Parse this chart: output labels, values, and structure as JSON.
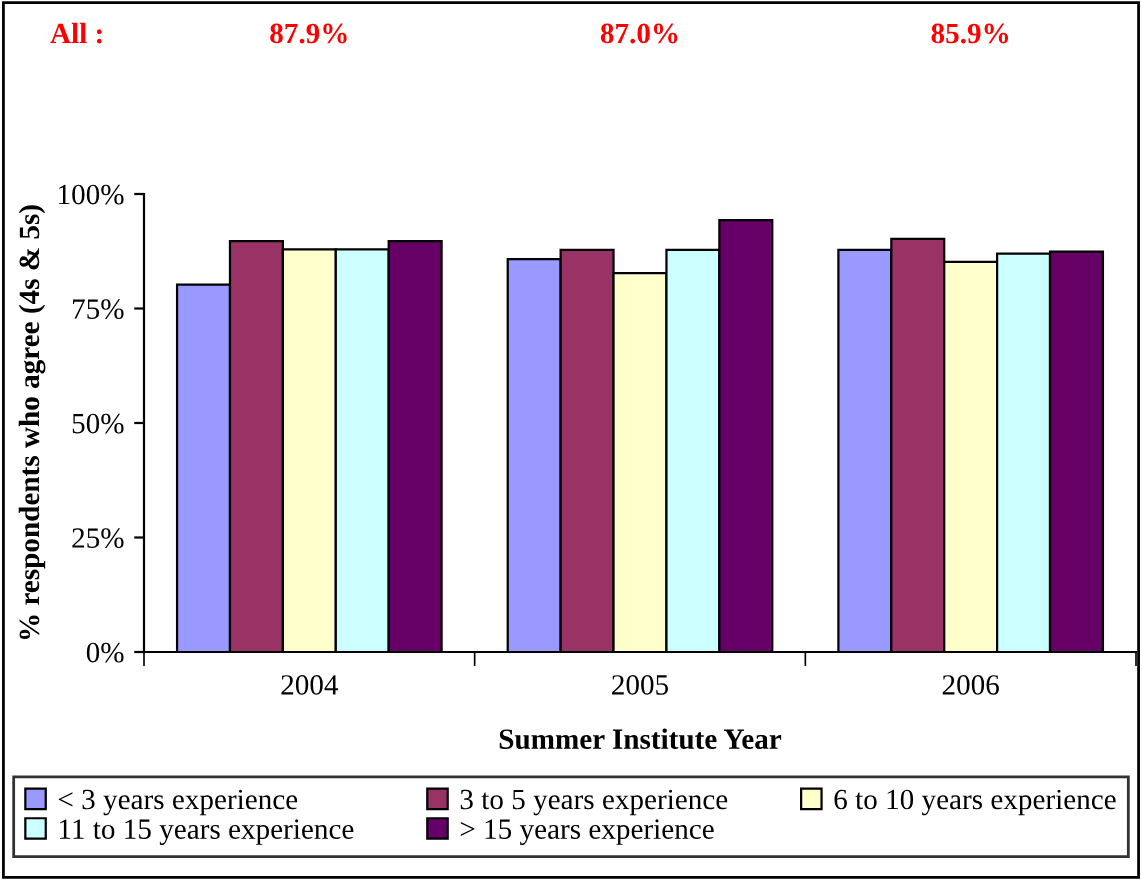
{
  "chart_data": {
    "type": "bar",
    "xlabel": "Summer Institute Year",
    "ylabel": "% respondents who agree (4s & 5s)",
    "categories": [
      "2004",
      "2005",
      "2006"
    ],
    "series": [
      {
        "name": "< 3 years experience",
        "color": "#9999ff",
        "values": [
          80.2,
          85.8,
          87.8
        ]
      },
      {
        "name": "3 to 5 years experience",
        "color": "#993366",
        "values": [
          89.7,
          87.8,
          90.2
        ]
      },
      {
        "name": "6 to 10 years experience",
        "color": "#ffffcc",
        "values": [
          87.9,
          82.7,
          85.2
        ]
      },
      {
        "name": "11 to 15 years experience",
        "color": "#ccffff",
        "values": [
          87.9,
          87.8,
          87.0
        ]
      },
      {
        "name": "> 15 years experience",
        "color": "#660066",
        "values": [
          89.7,
          94.3,
          87.4
        ]
      }
    ],
    "ylim": [
      0,
      100
    ],
    "yticks": [
      {
        "value": 0,
        "label": "0%"
      },
      {
        "value": 25,
        "label": "25%"
      },
      {
        "value": 50,
        "label": "50%"
      },
      {
        "value": 75,
        "label": "75%"
      },
      {
        "value": 100,
        "label": "100%"
      }
    ],
    "annotations": [
      "All :",
      "87.9%",
      "87.0%",
      "85.9%"
    ],
    "legend": "bottom",
    "grid": false
  }
}
